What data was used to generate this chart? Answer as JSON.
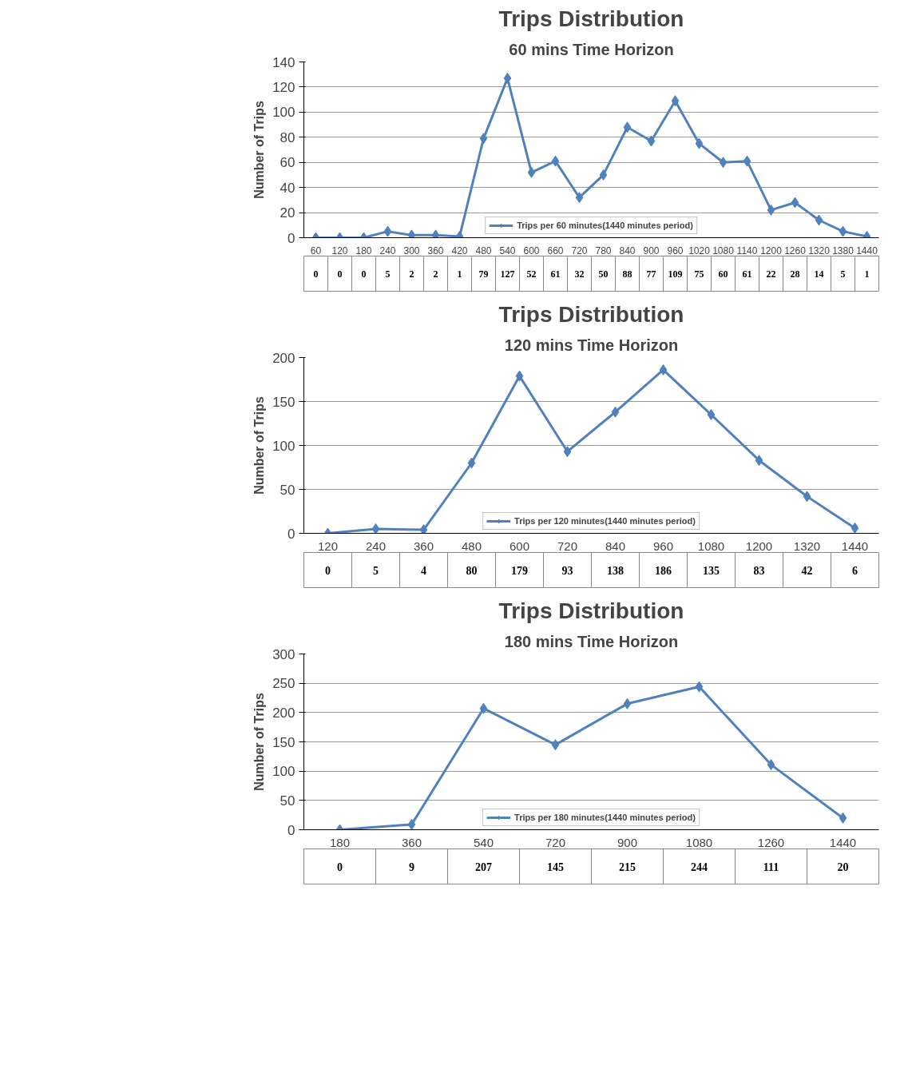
{
  "chart_data": [
    {
      "type": "line",
      "title": "Trips Distribution",
      "subtitle": "60 mins Time Horizon",
      "ylabel": "Number of Trips",
      "categories": [
        "60",
        "120",
        "180",
        "240",
        "300",
        "360",
        "420",
        "480",
        "540",
        "600",
        "660",
        "720",
        "780",
        "840",
        "900",
        "960",
        "1020",
        "1080",
        "1140",
        "1200",
        "1260",
        "1320",
        "1380",
        "1440"
      ],
      "series": [
        {
          "name": "Trips per 60 minutes(1440 minutes period)",
          "color": "#4f81bd",
          "values": [
            0,
            0,
            0,
            5,
            2,
            2,
            1,
            79,
            127,
            52,
            61,
            32,
            50,
            88,
            77,
            109,
            75,
            60,
            61,
            22,
            28,
            14,
            5,
            1
          ]
        }
      ],
      "ylim": [
        0,
        140
      ],
      "yticks": [
        0,
        20,
        40,
        60,
        80,
        100,
        120,
        140
      ],
      "grid": "y",
      "marker": "diamond",
      "legend": "bottom",
      "data_labels": true
    },
    {
      "type": "line",
      "title": "Trips Distribution",
      "subtitle": "120 mins Time Horizon",
      "ylabel": "Number of Trips",
      "categories": [
        "120",
        "240",
        "360",
        "480",
        "600",
        "720",
        "840",
        "960",
        "1080",
        "1200",
        "1320",
        "1440"
      ],
      "series": [
        {
          "name": "Trips per 120 minutes(1440 minutes period)",
          "color": "#4f81bd",
          "values": [
            0,
            5,
            4,
            80,
            179,
            93,
            138,
            186,
            135,
            83,
            42,
            6
          ]
        }
      ],
      "ylim": [
        0,
        200
      ],
      "yticks": [
        0,
        50,
        100,
        150,
        200
      ],
      "grid": "y",
      "marker": "diamond",
      "legend": "bottom",
      "data_labels": true
    },
    {
      "type": "line",
      "title": "Trips Distribution",
      "subtitle": "180 mins Time Horizon",
      "ylabel": "Number of Trips",
      "categories": [
        "180",
        "360",
        "540",
        "720",
        "900",
        "1080",
        "1260",
        "1440"
      ],
      "series": [
        {
          "name": "Trips per 180 minutes(1440 minutes period)",
          "color": "#4f81bd",
          "values": [
            0,
            9,
            207,
            145,
            215,
            244,
            111,
            20
          ]
        }
      ],
      "ylim": [
        0,
        300
      ],
      "yticks": [
        0,
        50,
        100,
        150,
        200,
        250,
        300
      ],
      "grid": "y",
      "marker": "diamond",
      "legend": "bottom",
      "data_labels": true
    }
  ]
}
